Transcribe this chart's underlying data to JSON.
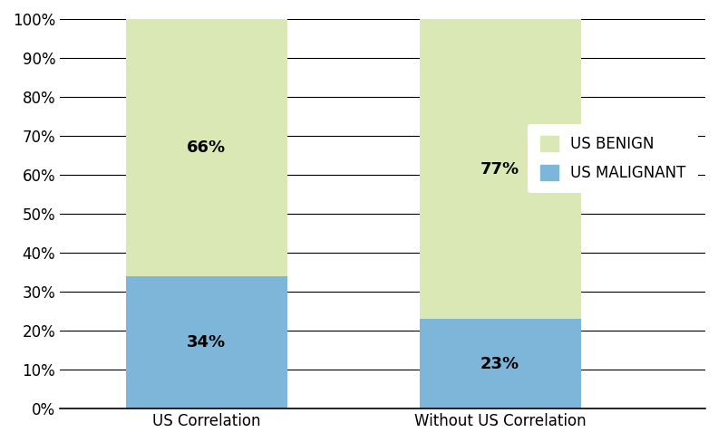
{
  "categories": [
    "US Correlation",
    "Without US Correlation"
  ],
  "malignant_values": [
    34,
    23
  ],
  "benign_values": [
    66,
    77
  ],
  "malignant_color": "#7eb6d9",
  "benign_color": "#d9e8b4",
  "malignant_label": "US MALIGNANT",
  "benign_label": "US BENIGN",
  "malignant_pct_labels": [
    "34%",
    "23%"
  ],
  "benign_pct_labels": [
    "66%",
    "77%"
  ],
  "ylim": [
    0,
    100
  ],
  "yticks": [
    0,
    10,
    20,
    30,
    40,
    50,
    60,
    70,
    80,
    90,
    100
  ],
  "ytick_labels": [
    "0%",
    "10%",
    "20%",
    "30%",
    "40%",
    "50%",
    "60%",
    "70%",
    "80%",
    "90%",
    "100%"
  ],
  "bar_width": 0.55,
  "label_fontsize": 13,
  "tick_fontsize": 12,
  "legend_fontsize": 12,
  "background_color": "#ffffff",
  "grid_color": "#000000",
  "bar_positions": [
    0,
    1
  ],
  "xlim": [
    -0.5,
    1.7
  ]
}
